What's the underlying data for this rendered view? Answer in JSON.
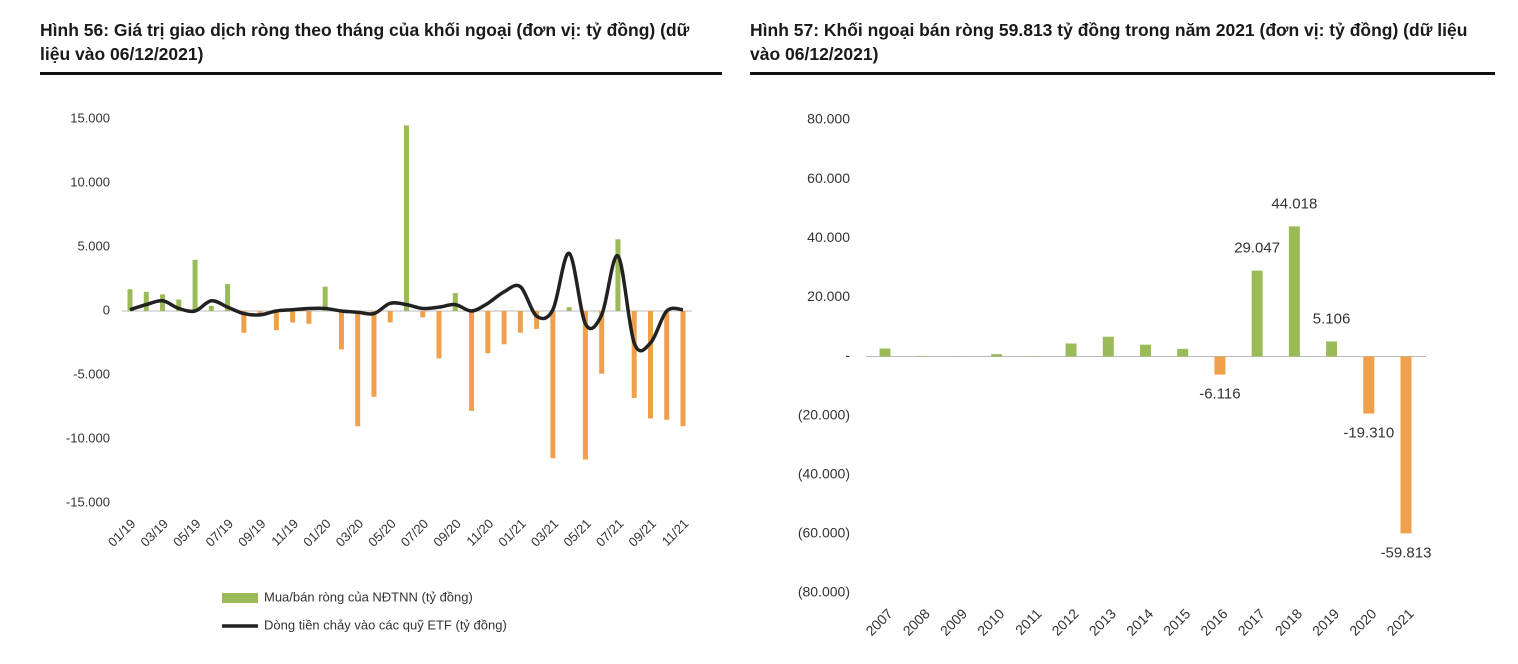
{
  "chart_data": [
    {
      "type": "combo",
      "title": "Hình 56: Giá trị giao dịch ròng theo tháng của khối ngoại (đơn vị: tỷ đồng) (dữ liệu vào 06/12/2021)",
      "categories": [
        "01/19",
        null,
        "03/19",
        null,
        "05/19",
        null,
        "07/19",
        null,
        "09/19",
        null,
        "11/19",
        null,
        "01/20",
        null,
        "03/20",
        null,
        "05/20",
        null,
        "07/20",
        null,
        "09/20",
        null,
        "11/20",
        null,
        "01/21",
        null,
        "03/21",
        null,
        "05/21",
        null,
        "07/21",
        null,
        "09/21",
        null,
        "11/21"
      ],
      "series": [
        {
          "name": "Mua/bán ròng của NĐTNN  (tỷ đồng)",
          "kind": "bar",
          "color": "#9bbb59",
          "negative_color": "#f0a04b",
          "values": [
            1700,
            1500,
            1300,
            900,
            4000,
            400,
            2100,
            -1700,
            -200,
            -1500,
            -900,
            -1000,
            1900,
            -3000,
            -9000,
            -6700,
            -900,
            14500,
            -500,
            -3700,
            1400,
            -7800,
            -3300,
            -2600,
            -1700,
            -1400,
            -11500,
            300,
            -11600,
            -4900,
            5600,
            -6800,
            -8400,
            -8500,
            -9000
          ]
        },
        {
          "name": "Dòng tiền chảy vào các quỹ ETF (tỷ đồng)",
          "kind": "line",
          "color": "#222222",
          "values": [
            100,
            500,
            800,
            200,
            0,
            800,
            300,
            -200,
            -300,
            0,
            100,
            200,
            200,
            0,
            -100,
            -200,
            600,
            500,
            200,
            300,
            500,
            0,
            600,
            1500,
            1900,
            -400,
            100,
            4500,
            -1000,
            -300,
            4300,
            -2500,
            -2500,
            0,
            100
          ]
        }
      ],
      "ylim": [
        -15000,
        15000
      ],
      "yticks": [
        {
          "value": -15000,
          "label": "-15.000"
        },
        {
          "value": -10000,
          "label": "-10.000"
        },
        {
          "value": -5000,
          "label": "-5.000"
        },
        0,
        {
          "value": 5000,
          "label": "5.000"
        },
        {
          "value": 10000,
          "label": "10.000"
        },
        {
          "value": 15000,
          "label": "15.000"
        }
      ],
      "grid": false,
      "legend": "bottom"
    },
    {
      "type": "bar",
      "title": "Hình 57: Khối ngoại bán ròng 59.813 tỷ đồng trong năm 2021 (đơn vị: tỷ đồng) (dữ liệu vào 06/12/2021)",
      "categories": [
        "2007",
        "2008",
        "2009",
        "2010",
        "2011",
        "2012",
        "2013",
        "2014",
        "2015",
        "2016",
        "2017",
        "2018",
        "2019",
        "2020",
        "2021"
      ],
      "values": [
        2700,
        200,
        100,
        800,
        100,
        4400,
        6700,
        4000,
        2600,
        -6116,
        29047,
        44018,
        5106,
        -19310,
        -59813
      ],
      "value_labels": [
        null,
        null,
        null,
        null,
        null,
        null,
        null,
        null,
        null,
        "-6.116",
        "29.047",
        "44.018",
        "5.106",
        "-19.310",
        "-59.813"
      ],
      "color": "#9bbb59",
      "negative_color": "#f0a04b",
      "ylim": [
        -80000,
        80000
      ],
      "yticks": [
        {
          "value": -80000,
          "label": "(80.000)"
        },
        {
          "value": -60000,
          "label": "(60.000)"
        },
        {
          "value": -40000,
          "label": "(40.000)"
        },
        {
          "value": -20000,
          "label": "(20.000)"
        },
        {
          "value": 0,
          "label": "-"
        },
        {
          "value": 20000,
          "label": "20.000"
        },
        {
          "value": 40000,
          "label": "40.000"
        },
        {
          "value": 60000,
          "label": "60.000"
        },
        {
          "value": 80000,
          "label": "80.000"
        }
      ],
      "grid": false
    }
  ]
}
